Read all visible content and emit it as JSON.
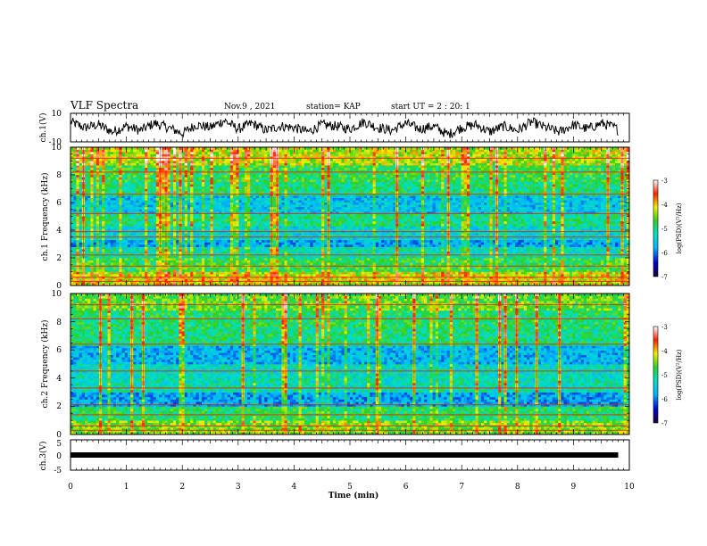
{
  "header": {
    "title": "VLF Spectra",
    "date": "Nov.9 , 2021",
    "station": "station= KAP",
    "start": "start UT = 2 : 20: 1"
  },
  "chart_data": [
    {
      "type": "line",
      "panel": "ch1-waveform",
      "ylabel": "ch.1(V)",
      "ylim": [
        -10,
        10
      ],
      "y_ticks": [
        "10",
        "-10"
      ],
      "xlim": [
        0,
        10
      ],
      "x": [
        0,
        0.25,
        0.5,
        0.75,
        1.0,
        1.25,
        1.5,
        1.75,
        2.0,
        2.25,
        2.5,
        2.75,
        3.0,
        3.25,
        3.5,
        3.75,
        4.0,
        4.25,
        4.5,
        4.75,
        5.0,
        5.25,
        5.5,
        5.75,
        6.0,
        6.25,
        6.5,
        6.75,
        7.0,
        7.25,
        7.5,
        7.75,
        8.0,
        8.25,
        8.5,
        8.75,
        9.0,
        9.25,
        9.5,
        9.75,
        9.8
      ],
      "y": [
        4,
        0,
        2,
        -3,
        1,
        -2,
        3,
        0,
        -4,
        2,
        0,
        5,
        -1,
        3,
        -2,
        1,
        0,
        -3,
        2,
        1,
        -1,
        4,
        0,
        -2,
        3,
        -1,
        1,
        -5,
        0,
        2,
        -3,
        1,
        -2,
        4,
        0,
        -3,
        2,
        -1,
        3,
        0,
        -2
      ],
      "line_color": "#000000"
    },
    {
      "type": "heatmap",
      "panel": "ch1-spectrogram",
      "ylabel": "ch.1 Frequency (kHz)",
      "ylim": [
        0,
        10
      ],
      "y_ticks": [
        "0",
        "2",
        "4",
        "6",
        "8",
        "10"
      ],
      "xlim": [
        0,
        10
      ],
      "bands": [
        {
          "f_low": 0,
          "f_high": 1,
          "log_psd": -4.2
        },
        {
          "f_low": 1,
          "f_high": 2,
          "log_psd": -4.8
        },
        {
          "f_low": 2,
          "f_high": 2.8,
          "log_psd": -5.2
        },
        {
          "f_low": 2.8,
          "f_high": 3.3,
          "log_psd": -5.8
        },
        {
          "f_low": 3.3,
          "f_high": 4.3,
          "log_psd": -5.4
        },
        {
          "f_low": 4.3,
          "f_high": 5.2,
          "log_psd": -5.0
        },
        {
          "f_low": 5.2,
          "f_high": 6.5,
          "log_psd": -5.6
        },
        {
          "f_low": 6.5,
          "f_high": 7.5,
          "log_psd": -5.0
        },
        {
          "f_low": 7.5,
          "f_high": 8.7,
          "log_psd": -4.8
        },
        {
          "f_low": 8.7,
          "f_high": 10,
          "log_psd": -4.3
        }
      ],
      "lines_khz": [
        0.3,
        0.6,
        1.4,
        2.2,
        3.5,
        3.9,
        5.2,
        6.6,
        8.2,
        9.2
      ],
      "colorbar": {
        "label": "log(PSD)(V²/Hz)",
        "range": [
          -7,
          -3
        ],
        "ticks": [
          "-3",
          "-4",
          "-5",
          "-6",
          "-7"
        ]
      }
    },
    {
      "type": "heatmap",
      "panel": "ch2-spectrogram",
      "ylabel": "ch.2 Frequency (kHz)",
      "ylim": [
        0,
        10
      ],
      "y_ticks": [
        "0",
        "2",
        "4",
        "6",
        "8",
        "10"
      ],
      "xlim": [
        0,
        10
      ],
      "bands": [
        {
          "f_low": 0,
          "f_high": 1,
          "log_psd": -4.5
        },
        {
          "f_low": 1,
          "f_high": 2,
          "log_psd": -4.9
        },
        {
          "f_low": 2,
          "f_high": 3,
          "log_psd": -5.8
        },
        {
          "f_low": 3,
          "f_high": 4,
          "log_psd": -5.2
        },
        {
          "f_low": 4,
          "f_high": 5,
          "log_psd": -5.3
        },
        {
          "f_low": 5,
          "f_high": 6.3,
          "log_psd": -5.7
        },
        {
          "f_low": 6.3,
          "f_high": 7.5,
          "log_psd": -5.0
        },
        {
          "f_low": 7.5,
          "f_high": 8.8,
          "log_psd": -4.9
        },
        {
          "f_low": 8.8,
          "f_high": 10,
          "log_psd": -4.6
        }
      ],
      "lines_khz": [
        0.3,
        0.6,
        1.4,
        2.1,
        3.3,
        4.5,
        6.4,
        8.2,
        9.2
      ],
      "colorbar": {
        "label": "log(PSD)(V²/Hz)",
        "range": [
          -7,
          -3
        ],
        "ticks": [
          "-3",
          "-4",
          "-5",
          "-6",
          "-7"
        ]
      }
    },
    {
      "type": "line",
      "panel": "ch3-waveform",
      "ylabel": "ch.3(V)",
      "ylim": [
        -5,
        5
      ],
      "y_ticks": [
        "5",
        "0",
        "-5"
      ],
      "xlim": [
        0,
        10
      ],
      "x": [
        0,
        9.8
      ],
      "y": [
        0,
        0
      ],
      "line_color": "#000000"
    }
  ],
  "xaxis": {
    "label": "Time (min)",
    "ticks": [
      "0",
      "1",
      "2",
      "3",
      "4",
      "5",
      "6",
      "7",
      "8",
      "9",
      "10"
    ]
  }
}
